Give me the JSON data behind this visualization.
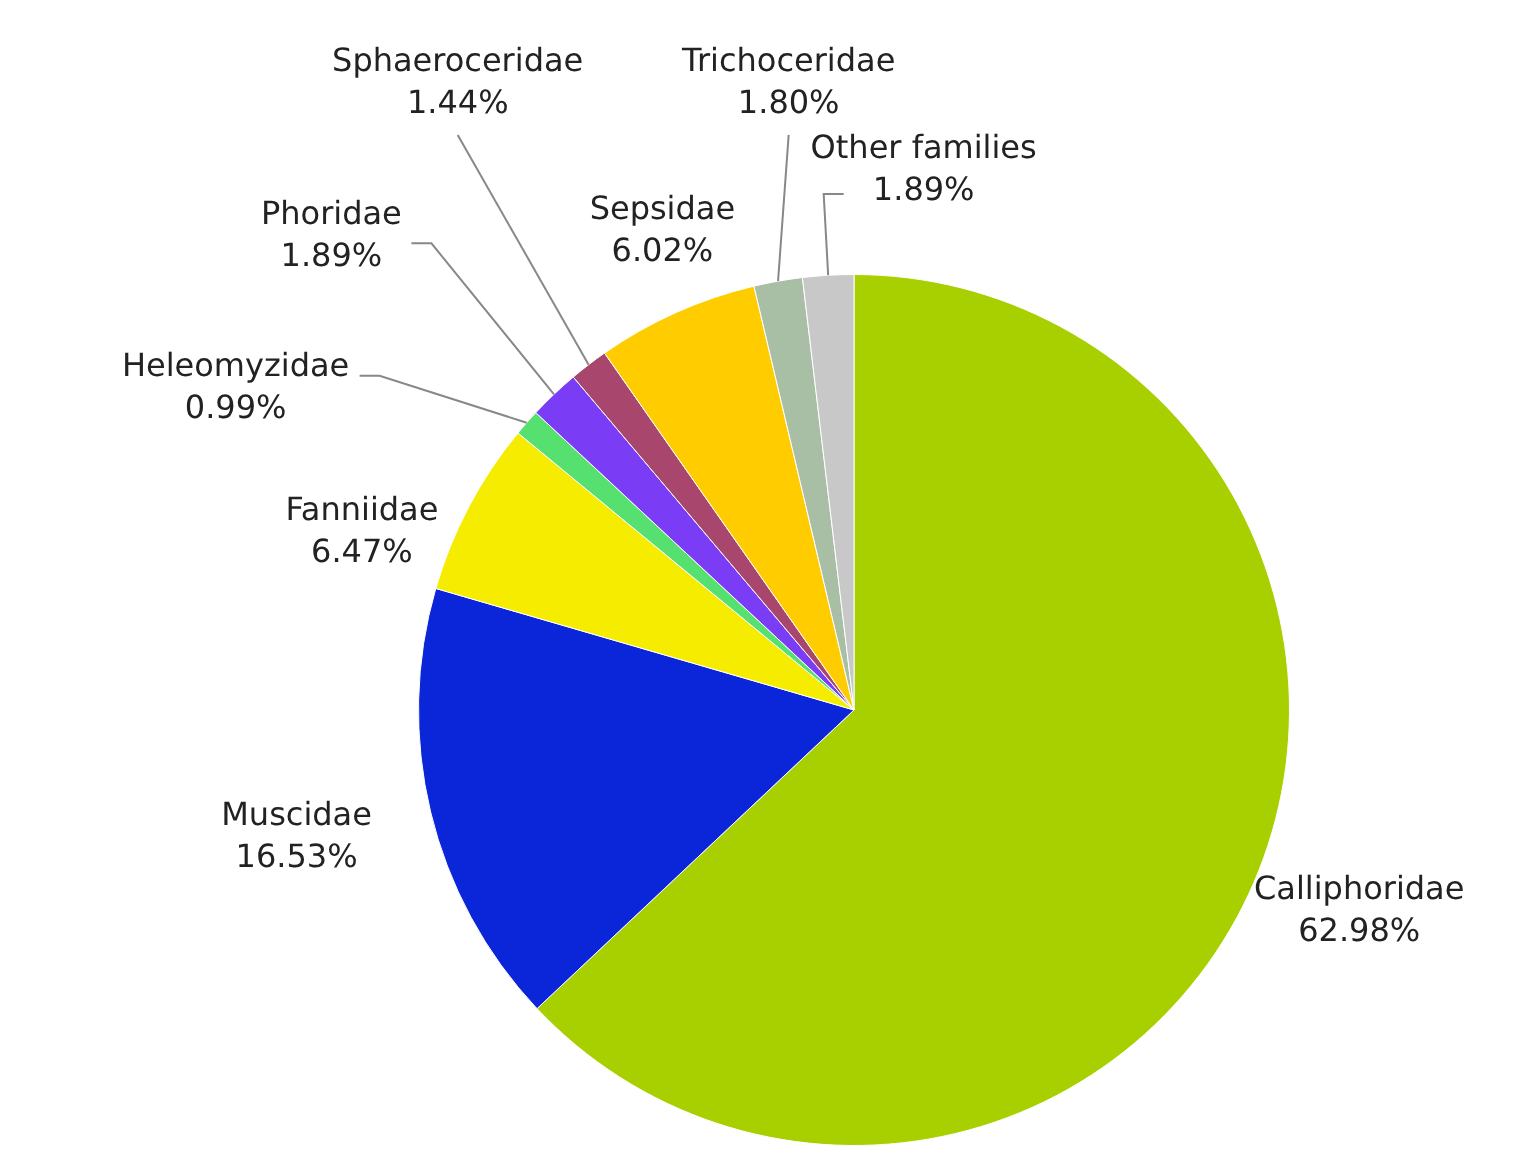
{
  "chart_data": {
    "type": "pie",
    "categories": [
      "Calliphoridae",
      "Muscidae",
      "Fanniidae",
      "Heleomyzidae",
      "Phoridae",
      "Sphaeroceridae",
      "Sepsidae",
      "Trichoceridae",
      "Other families"
    ],
    "values": [
      62.98,
      16.53,
      6.47,
      0.99,
      1.89,
      1.44,
      6.02,
      1.8,
      1.89
    ],
    "value_labels": [
      "62.98%",
      "16.53%",
      "6.47%",
      "0.99%",
      "1.89%",
      "1.44%",
      "6.02%",
      "1.80%",
      "1.89%"
    ],
    "colors": [
      "#a8d000",
      "#0a26d8",
      "#f5ec00",
      "#55e070",
      "#7a3cf5",
      "#a8466e",
      "#ffcc00",
      "#a9bfa5",
      "#c8c8c8"
    ],
    "legend": false
  }
}
